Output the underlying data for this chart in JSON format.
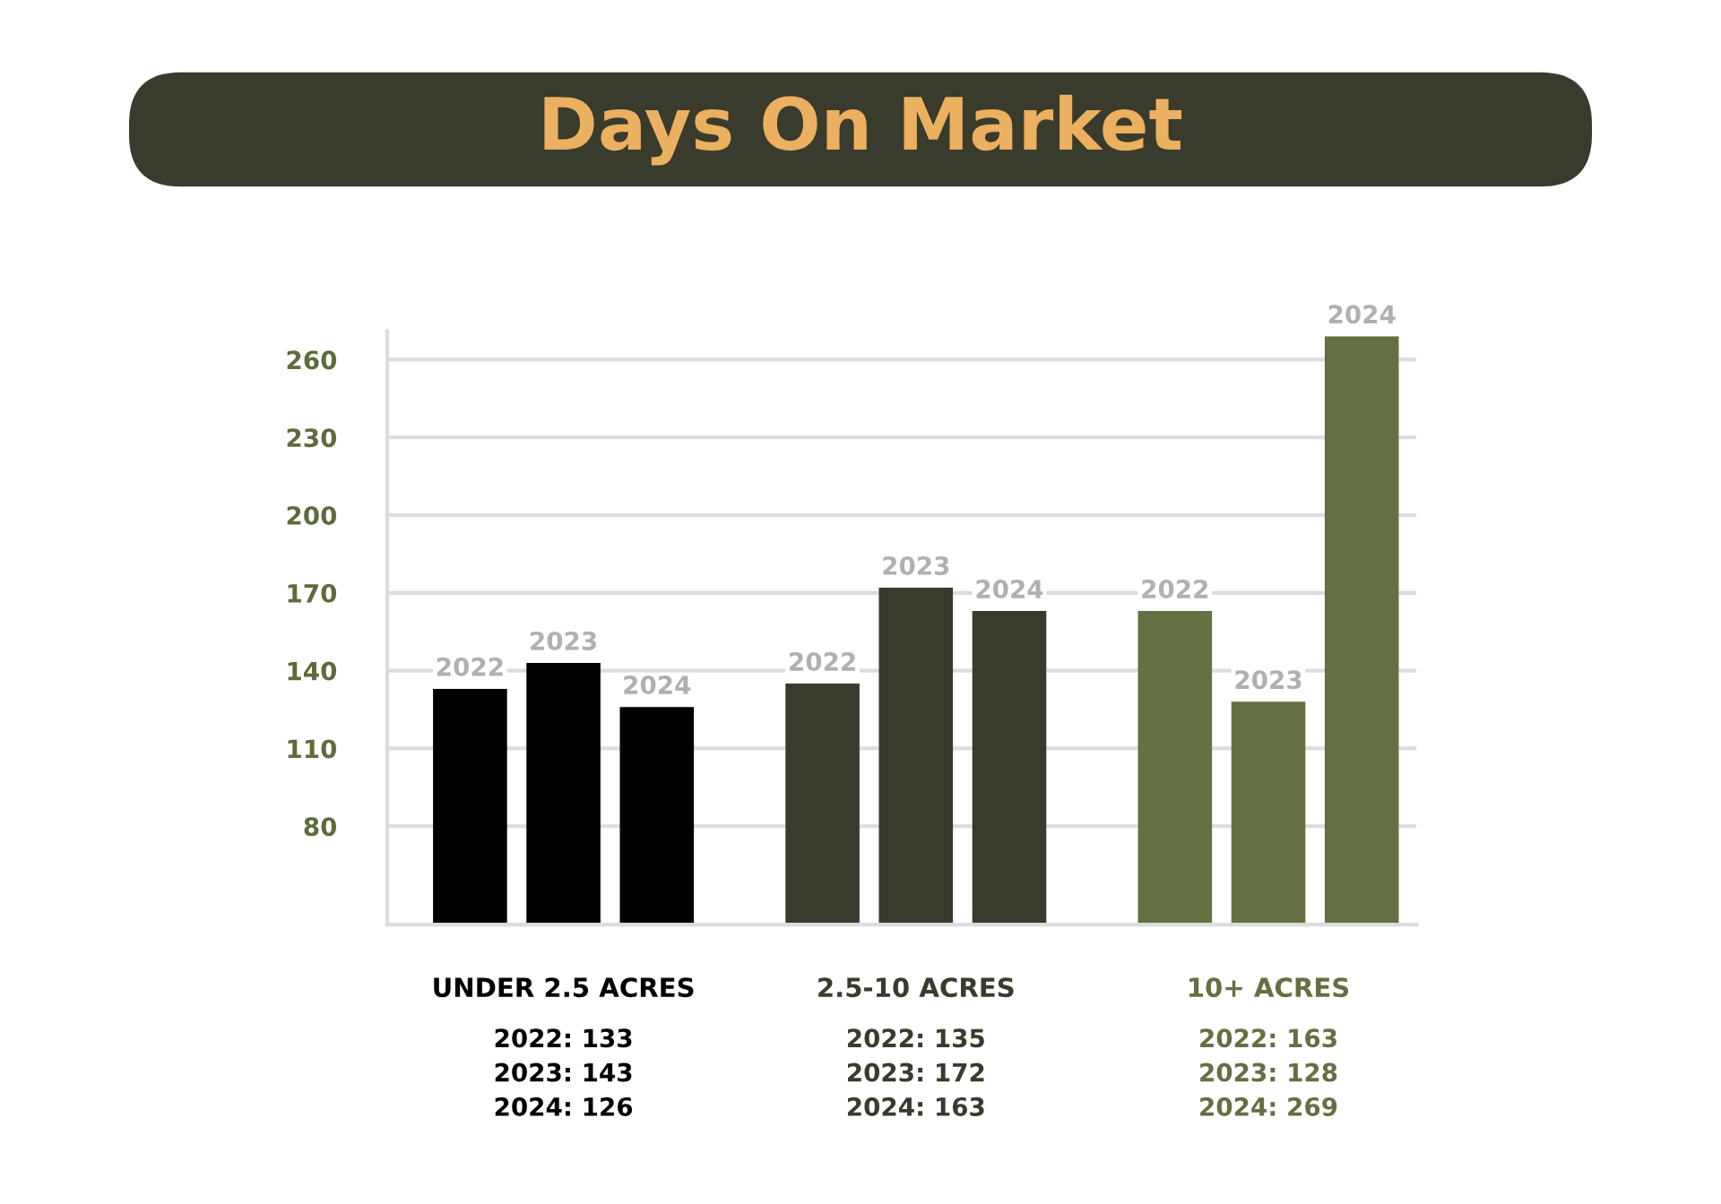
{
  "chart_data": {
    "type": "bar",
    "title": "Days On Market",
    "categories": [
      "UNDER 2.5 ACRES",
      "2.5-10 ACRES",
      "10+ ACRES"
    ],
    "series": [
      {
        "name": "2022",
        "colors": [
          "#000000",
          "#393b2c",
          "#647041"
        ],
        "values": [
          133,
          135,
          163
        ],
        "value_labels": [
          "2022: 133",
          "2022: 135",
          "2022: 163"
        ]
      },
      {
        "name": "2023",
        "colors": [
          "#000000",
          "#393b2c",
          "#647041"
        ],
        "values": [
          143,
          172,
          128
        ],
        "value_labels": [
          "2023: 143",
          "2023: 172",
          "2023: 128"
        ]
      },
      {
        "name": "2024",
        "colors": [
          "#000000",
          "#393b2c",
          "#647041"
        ],
        "values": [
          126,
          163,
          269
        ],
        "value_labels": [
          "2024: 126",
          "2024: 163",
          "2024: 269"
        ]
      }
    ],
    "ylim": [
      42,
      271
    ],
    "yticks": [
      80,
      110,
      140,
      170,
      200,
      230,
      260
    ],
    "grid": "y",
    "legend": false
  }
}
